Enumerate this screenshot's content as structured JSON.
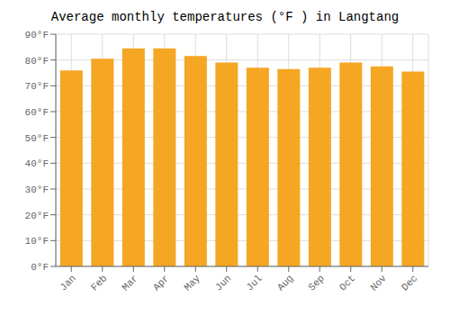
{
  "chart_data": {
    "type": "bar",
    "title": "Average monthly temperatures (°F ) in Langtang",
    "categories": [
      "Jan",
      "Feb",
      "Mar",
      "Apr",
      "May",
      "Jun",
      "Jul",
      "Aug",
      "Sep",
      "Oct",
      "Nov",
      "Dec"
    ],
    "values": [
      76,
      80.5,
      84.5,
      84.5,
      81.5,
      79,
      77,
      76.5,
      77,
      79,
      77.5,
      75.5
    ],
    "color": "#F5A623",
    "ylim": [
      0,
      90
    ],
    "yticks": [
      {
        "value": 0,
        "label": "0°F"
      },
      {
        "value": 10,
        "label": "10°F"
      },
      {
        "value": 20,
        "label": "20°F"
      },
      {
        "value": 30,
        "label": "30°F"
      },
      {
        "value": 40,
        "label": "40°F"
      },
      {
        "value": 50,
        "label": "50°F"
      },
      {
        "value": 60,
        "label": "60°F"
      },
      {
        "value": 70,
        "label": "70°F"
      },
      {
        "value": 80,
        "label": "80°F"
      },
      {
        "value": 90,
        "label": "90°F"
      }
    ],
    "grid": true
  }
}
